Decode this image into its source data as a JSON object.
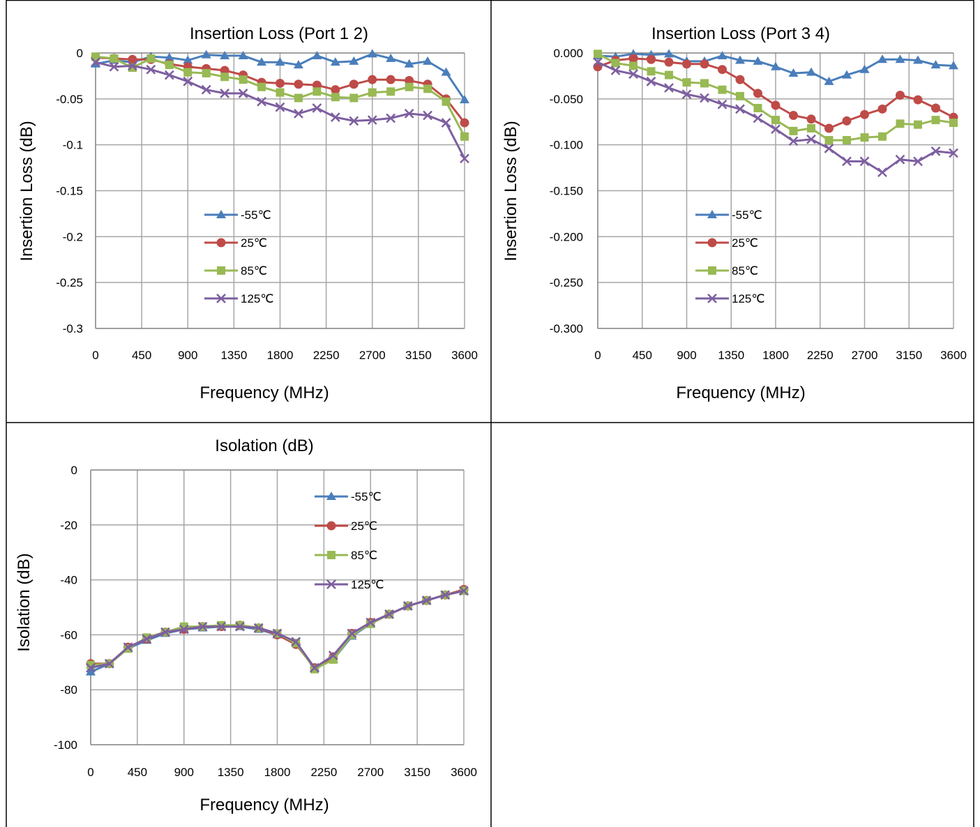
{
  "colors": {
    "series": [
      "#4A7EBB",
      "#BE4B48",
      "#98B954",
      "#7D5FA0"
    ],
    "gridline": "#A6A6A6",
    "axis": "#808080",
    "border": "#000000"
  },
  "chart_data": [
    {
      "type": "line",
      "title": "Insertion Loss (Port 1 2)",
      "xlabel": "Frequency (MHz)",
      "ylabel": "Insertion Loss (dB)",
      "xlim": [
        0,
        3600
      ],
      "ylim": [
        -0.3,
        0
      ],
      "xticks": [
        0,
        450,
        900,
        1350,
        1800,
        2250,
        2700,
        3150,
        3600
      ],
      "xtick_labels": [
        "0",
        "450",
        "900",
        "1350",
        "1800",
        "2250",
        "2700",
        "3150",
        "3600"
      ],
      "yticks": [
        0,
        -0.05,
        -0.1,
        -0.15,
        -0.2,
        -0.25,
        -0.3
      ],
      "ytick_labels": [
        "0",
        "-0.05",
        "-0.1",
        "-0.15",
        "-0.2",
        "-0.25",
        "-0.3"
      ],
      "grid": true,
      "legend_position": "middle-left",
      "x": [
        0,
        180,
        360,
        540,
        720,
        900,
        1080,
        1260,
        1440,
        1620,
        1800,
        1980,
        2160,
        2340,
        2520,
        2700,
        2880,
        3060,
        3240,
        3420,
        3600
      ],
      "series": [
        {
          "name": "-55℃",
          "marker": "triangle",
          "values": [
            -0.012,
            -0.008,
            -0.01,
            -0.004,
            -0.005,
            -0.008,
            -0.002,
            -0.003,
            -0.003,
            -0.01,
            -0.01,
            -0.013,
            -0.003,
            -0.01,
            -0.009,
            -0.001,
            -0.006,
            -0.012,
            -0.009,
            -0.021,
            -0.051
          ]
        },
        {
          "name": "25℃",
          "marker": "circle",
          "values": [
            -0.005,
            -0.006,
            -0.007,
            -0.007,
            -0.012,
            -0.015,
            -0.017,
            -0.019,
            -0.024,
            -0.032,
            -0.033,
            -0.034,
            -0.035,
            -0.04,
            -0.034,
            -0.029,
            -0.029,
            -0.03,
            -0.034,
            -0.05,
            -0.076
          ]
        },
        {
          "name": "85℃",
          "marker": "square",
          "values": [
            -0.004,
            -0.006,
            -0.016,
            -0.006,
            -0.013,
            -0.021,
            -0.022,
            -0.026,
            -0.029,
            -0.037,
            -0.043,
            -0.049,
            -0.042,
            -0.048,
            -0.049,
            -0.043,
            -0.042,
            -0.037,
            -0.039,
            -0.053,
            -0.091
          ]
        },
        {
          "name": "125℃",
          "marker": "x",
          "values": [
            -0.01,
            -0.015,
            -0.014,
            -0.018,
            -0.024,
            -0.031,
            -0.04,
            -0.044,
            -0.044,
            -0.053,
            -0.059,
            -0.066,
            -0.06,
            -0.07,
            -0.074,
            -0.073,
            -0.071,
            -0.066,
            -0.068,
            -0.076,
            -0.115
          ]
        }
      ]
    },
    {
      "type": "line",
      "title": "Insertion Loss (Port 3 4)",
      "xlabel": "Frequency (MHz)",
      "ylabel": "Insertion Loss (dB)",
      "xlim": [
        0,
        3600
      ],
      "ylim": [
        -0.3,
        0
      ],
      "xticks": [
        0,
        450,
        900,
        1350,
        1800,
        2250,
        2700,
        3150,
        3600
      ],
      "xtick_labels": [
        "0",
        "450",
        "900",
        "1350",
        "1800",
        "2250",
        "2700",
        "3150",
        "3600"
      ],
      "yticks": [
        0,
        -0.05,
        -0.1,
        -0.15,
        -0.2,
        -0.25,
        -0.3
      ],
      "ytick_labels": [
        "0.000",
        "-0.050",
        "-0.100",
        "-0.150",
        "-0.200",
        "-0.250",
        "-0.300"
      ],
      "grid": true,
      "legend_position": "middle-left",
      "x": [
        0,
        180,
        360,
        540,
        720,
        900,
        1080,
        1260,
        1440,
        1620,
        1800,
        1980,
        2160,
        2340,
        2520,
        2700,
        2880,
        3060,
        3240,
        3420,
        3600
      ],
      "series": [
        {
          "name": "-55℃",
          "marker": "triangle",
          "values": [
            -0.003,
            -0.004,
            -0.001,
            -0.002,
            -0.001,
            -0.009,
            -0.009,
            -0.003,
            -0.008,
            -0.009,
            -0.015,
            -0.022,
            -0.021,
            -0.031,
            -0.024,
            -0.018,
            -0.007,
            -0.007,
            -0.008,
            -0.013,
            -0.014
          ]
        },
        {
          "name": "25℃",
          "marker": "circle",
          "values": [
            -0.015,
            -0.008,
            -0.006,
            -0.007,
            -0.01,
            -0.012,
            -0.012,
            -0.018,
            -0.029,
            -0.044,
            -0.057,
            -0.068,
            -0.072,
            -0.082,
            -0.074,
            -0.067,
            -0.061,
            -0.046,
            -0.051,
            -0.06,
            -0.07
          ]
        },
        {
          "name": "85℃",
          "marker": "square",
          "values": [
            -0.001,
            -0.011,
            -0.014,
            -0.02,
            -0.024,
            -0.032,
            -0.033,
            -0.04,
            -0.047,
            -0.06,
            -0.073,
            -0.085,
            -0.082,
            -0.095,
            -0.095,
            -0.092,
            -0.091,
            -0.077,
            -0.078,
            -0.073,
            -0.076
          ]
        },
        {
          "name": "125℃",
          "marker": "x",
          "values": [
            -0.01,
            -0.019,
            -0.023,
            -0.031,
            -0.038,
            -0.045,
            -0.049,
            -0.056,
            -0.061,
            -0.071,
            -0.083,
            -0.096,
            -0.094,
            -0.104,
            -0.118,
            -0.118,
            -0.13,
            -0.116,
            -0.118,
            -0.107,
            -0.109
          ]
        }
      ]
    },
    {
      "type": "line",
      "title": "Isolation (dB)",
      "xlabel": "Frequency (MHz)",
      "ylabel": "Isolation (dB)",
      "xlim": [
        0,
        3600
      ],
      "ylim": [
        -100,
        0
      ],
      "xticks": [
        0,
        450,
        900,
        1350,
        1800,
        2250,
        2700,
        3150,
        3600
      ],
      "xtick_labels": [
        "0",
        "450",
        "900",
        "1350",
        "1800",
        "2250",
        "2700",
        "3150",
        "3600"
      ],
      "yticks": [
        0,
        -20,
        -40,
        -60,
        -80,
        -100
      ],
      "ytick_labels": [
        "0",
        "-20",
        "-40",
        "-60",
        "-80",
        "-100"
      ],
      "grid": true,
      "legend_position": "top-right",
      "x": [
        0,
        180,
        360,
        540,
        720,
        900,
        1080,
        1260,
        1440,
        1620,
        1800,
        1980,
        2160,
        2340,
        2520,
        2700,
        2880,
        3060,
        3240,
        3420,
        3600
      ],
      "series": [
        {
          "name": "-55℃",
          "marker": "triangle",
          "values": [
            -73.5,
            -70.5,
            -65,
            -62,
            -59.5,
            -58,
            -57.5,
            -57,
            -57,
            -58,
            -60,
            -63,
            -72,
            -69,
            -60.5,
            -56,
            -52.5,
            -49.5,
            -47.5,
            -45.5,
            -44
          ]
        },
        {
          "name": "25℃",
          "marker": "circle",
          "values": [
            -70.5,
            -70.5,
            -64.5,
            -61.5,
            -59,
            -58,
            -57,
            -57,
            -56.5,
            -57.5,
            -60,
            -63.5,
            -72,
            -68,
            -59.5,
            -55.5,
            -52.5,
            -49.5,
            -47.5,
            -45.5,
            -43.5
          ]
        },
        {
          "name": "85℃",
          "marker": "square",
          "values": [
            -71,
            -70.5,
            -65,
            -61,
            -59,
            -57,
            -57,
            -56.5,
            -56.5,
            -57.5,
            -59.5,
            -63,
            -72.5,
            -69,
            -60,
            -56,
            -52.5,
            -49.5,
            -47.5,
            -45.5,
            -44
          ]
        },
        {
          "name": "125℃",
          "marker": "x",
          "values": [
            -72,
            -70.5,
            -64.5,
            -61.5,
            -59,
            -58,
            -57,
            -57,
            -57,
            -57.5,
            -59.5,
            -62.5,
            -72,
            -67.5,
            -59.5,
            -55.5,
            -52.5,
            -49.5,
            -47.5,
            -45.5,
            -44
          ]
        }
      ]
    }
  ]
}
